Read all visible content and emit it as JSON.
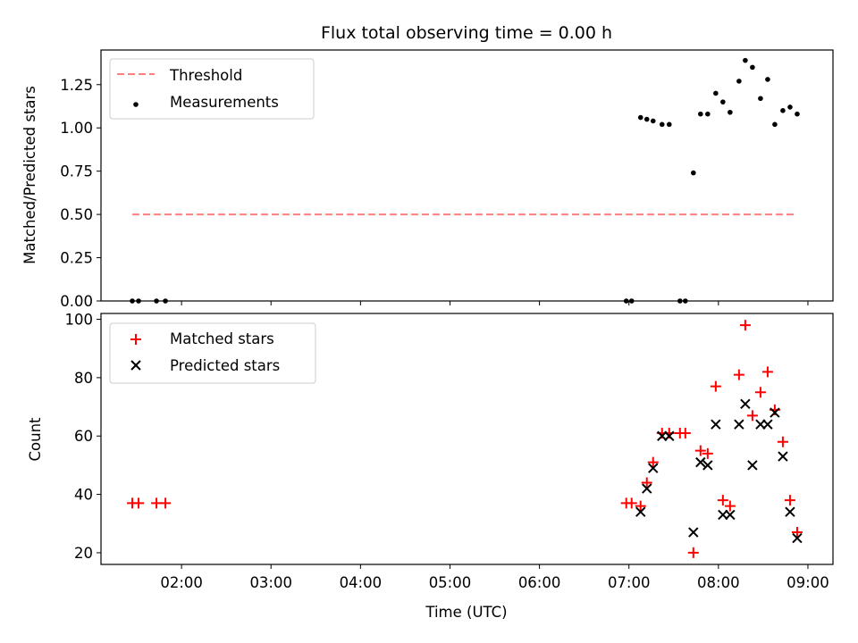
{
  "chart_data": [
    {
      "type": "scatter",
      "title": "Flux total observing time = 0.00 h",
      "xlabel": "",
      "ylabel": "Matched/Predicted stars",
      "xlim": [
        1.1,
        9.28
      ],
      "ylim": [
        0,
        1.45
      ],
      "yticks": [
        "0.00",
        "0.25",
        "0.50",
        "0.75",
        "1.00",
        "1.25"
      ],
      "xticks_hours": [
        2,
        3,
        4,
        5,
        6,
        7,
        8,
        9
      ],
      "legend_position": "top-left",
      "threshold": {
        "name": "Threshold",
        "value": 0.5,
        "x": [
          1.45,
          8.87
        ],
        "color": "#ff7f7f"
      },
      "series": [
        {
          "name": "Measurements",
          "color": "#000000",
          "x": [
            1.45,
            1.52,
            1.72,
            1.82,
            6.97,
            7.03,
            7.13,
            7.2,
            7.27,
            7.37,
            7.45,
            7.57,
            7.63,
            7.72,
            7.8,
            7.88,
            7.97,
            8.05,
            8.13,
            8.23,
            8.3,
            8.38,
            8.47,
            8.55,
            8.63,
            8.72,
            8.8,
            8.88
          ],
          "y": [
            0,
            0,
            0,
            0,
            0,
            0,
            1.06,
            1.05,
            1.04,
            1.02,
            1.02,
            0,
            0,
            0.74,
            1.08,
            1.08,
            1.2,
            1.15,
            1.09,
            1.27,
            1.39,
            1.35,
            1.17,
            1.28,
            1.02,
            1.1,
            1.12,
            1.08
          ]
        }
      ]
    },
    {
      "type": "scatter",
      "title": "",
      "xlabel": "Time (UTC)",
      "ylabel": "Count",
      "xlim": [
        1.1,
        9.28
      ],
      "ylim": [
        16,
        102
      ],
      "yticks": [
        "20",
        "40",
        "60",
        "80",
        "100"
      ],
      "xticks": [
        "02:00",
        "03:00",
        "04:00",
        "05:00",
        "06:00",
        "07:00",
        "08:00",
        "09:00"
      ],
      "xticks_hours": [
        2,
        3,
        4,
        5,
        6,
        7,
        8,
        9
      ],
      "legend_position": "top-left",
      "series": [
        {
          "name": "Matched stars",
          "marker": "plus",
          "color": "#ff0000",
          "x": [
            1.45,
            1.52,
            1.72,
            1.82,
            6.97,
            7.03,
            7.13,
            7.2,
            7.27,
            7.37,
            7.45,
            7.57,
            7.63,
            7.72,
            7.8,
            7.88,
            7.97,
            8.05,
            8.13,
            8.23,
            8.3,
            8.38,
            8.47,
            8.55,
            8.63,
            8.72,
            8.8,
            8.88
          ],
          "y": [
            37,
            37,
            37,
            37,
            37,
            37,
            36,
            44,
            51,
            61,
            61,
            61,
            61,
            20,
            55,
            54,
            77,
            38,
            36,
            81,
            98,
            67,
            75,
            82,
            69,
            58,
            38,
            27
          ]
        },
        {
          "name": "Predicted stars",
          "marker": "x",
          "color": "#000000",
          "x": [
            7.13,
            7.2,
            7.27,
            7.37,
            7.45,
            7.72,
            7.8,
            7.88,
            7.97,
            8.05,
            8.13,
            8.23,
            8.3,
            8.38,
            8.47,
            8.55,
            8.63,
            8.72,
            8.8,
            8.88
          ],
          "y": [
            34,
            42,
            49,
            60,
            60,
            27,
            51,
            50,
            64,
            33,
            33,
            64,
            71,
            50,
            64,
            64,
            68,
            53,
            34,
            25
          ]
        }
      ]
    }
  ]
}
